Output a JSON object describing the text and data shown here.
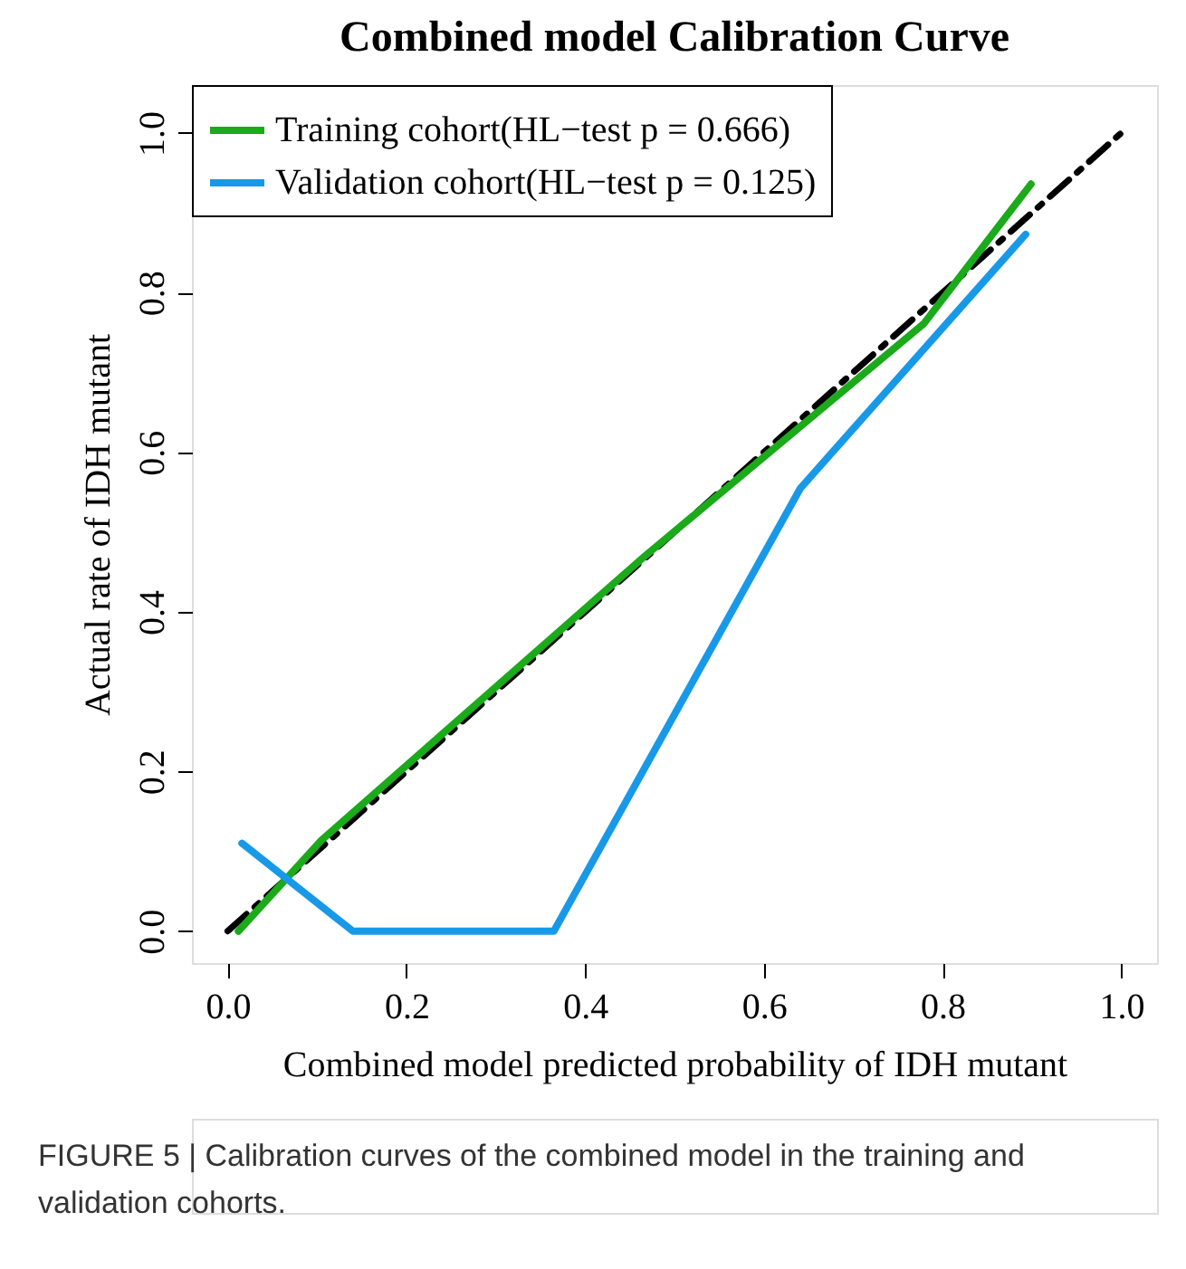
{
  "chart_data": {
    "type": "line",
    "title": "Combined model Calibration Curve",
    "xlabel": "Combined model predicted probability of IDH mutant",
    "ylabel": "Actual rate of IDH mutant",
    "xlim": [
      -0.04,
      1.04
    ],
    "ylim": [
      -0.04,
      1.06
    ],
    "xticks": [
      {
        "value": 0,
        "label": "0.0"
      },
      0.2,
      0.4,
      0.6,
      0.8,
      {
        "value": 1,
        "label": "1.0"
      }
    ],
    "yticks": [
      {
        "value": 0,
        "label": "0.0"
      },
      0.2,
      0.4,
      0.6,
      0.8,
      {
        "value": 1,
        "label": "1.0"
      }
    ],
    "grid": false,
    "legend": "top left",
    "series": [
      {
        "color": "#000000",
        "line_style": "dashed",
        "x": [
          0,
          1
        ],
        "values": [
          0,
          1
        ]
      },
      {
        "name": "Training cohort(HL−test p = 0.666)",
        "color": "#1aaa1a",
        "line_style": "solid",
        "x": [
          0.012,
          0.105,
          0.467,
          0.779,
          0.899
        ],
        "values": [
          0.0,
          0.114,
          0.47,
          0.761,
          0.936
        ]
      },
      {
        "name": "Validation cohort(HL−test p = 0.125)",
        "color": "#1899e8",
        "line_style": "solid",
        "x": [
          0.016,
          0.14,
          0.365,
          0.641,
          0.893
        ],
        "values": [
          0.11,
          0.0,
          0.0,
          0.555,
          0.873
        ]
      }
    ],
    "annotations": [
      "FIGURE 5 | Calibration curves of the combined model in the training and validation cohorts."
    ]
  }
}
